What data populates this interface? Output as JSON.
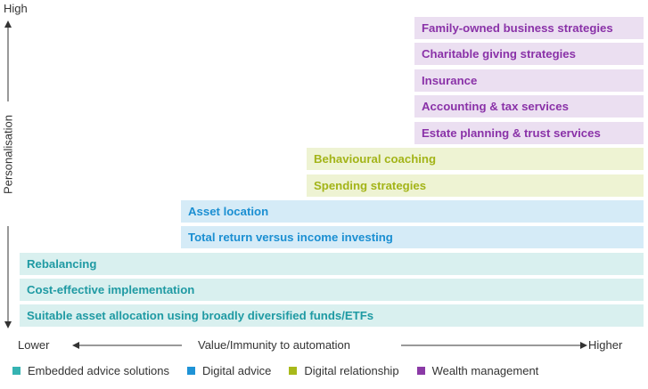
{
  "colors": {
    "embedded_bg": "#d9f0ef",
    "embedded_fg": "#1f9aa3",
    "embedded_swatch": "#35b3b2",
    "digital_bg": "#d5ebf7",
    "digital_fg": "#1b8fd2",
    "digital_swatch": "#1f93d6",
    "relation_bg": "#eef3d3",
    "relation_fg": "#a3b418",
    "relation_swatch": "#a8b91a",
    "wealth_bg": "#ebdff1",
    "wealth_fg": "#8a32a8",
    "wealth_swatch": "#8b3aa6",
    "axis": "#333333"
  },
  "y_axis": {
    "high_label": "High",
    "title": "Personalisation"
  },
  "x_axis": {
    "low_label": "Lower",
    "title": "Value/Immunity to automation",
    "high_label": "Higher"
  },
  "services": {
    "family_business": "Family-owned business strategies",
    "charitable": "Charitable giving strategies",
    "insurance": "Insurance",
    "accounting_tax": "Accounting & tax services",
    "estate_planning": "Estate planning & trust services",
    "behavioural": "Behavioural coaching",
    "spending": "Spending strategies",
    "asset_location": "Asset location",
    "total_return": "Total return versus income investing",
    "rebalancing": "Rebalancing",
    "cost_effective": "Cost-effective implementation",
    "asset_allocation": "Suitable asset allocation using broadly diversified funds/ETFs"
  },
  "legend": {
    "embedded": "Embedded advice solutions",
    "digital": "Digital advice",
    "relationship": "Digital relationship",
    "wealth": "Wealth management"
  }
}
